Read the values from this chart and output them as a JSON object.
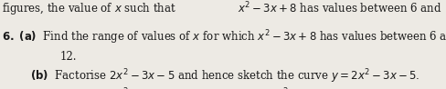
{
  "bg_color": "#edeae4",
  "text_color": "#1a1a1a",
  "fontsize": 8.5
}
